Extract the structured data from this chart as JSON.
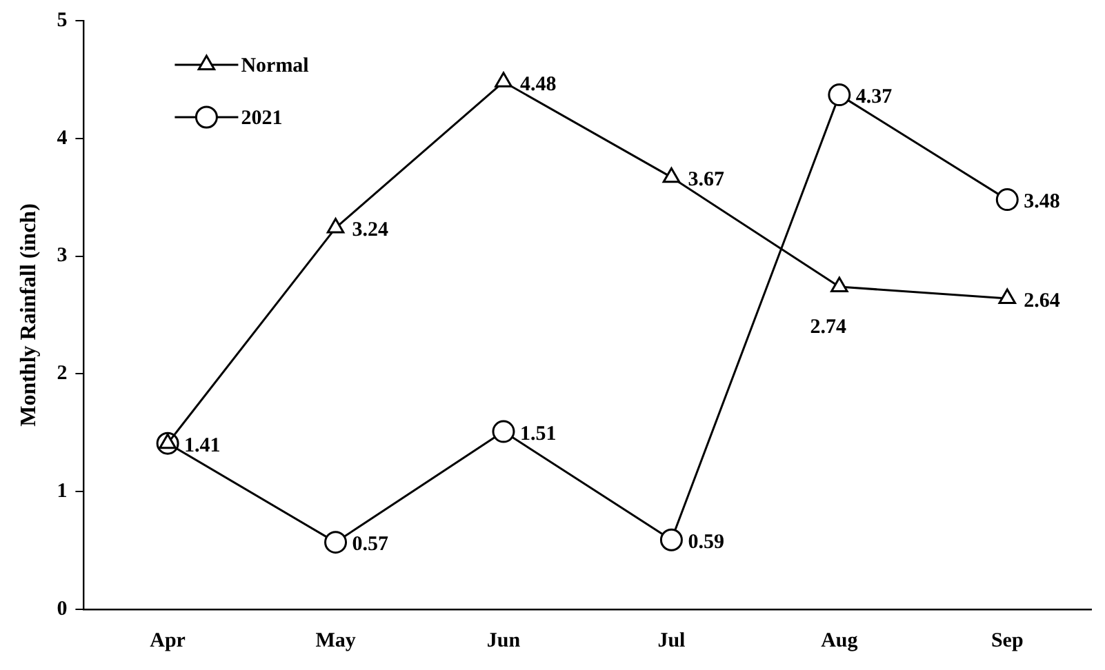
{
  "chart_data": {
    "type": "line",
    "ylabel": "Monthly Rainfall (inch)",
    "categories": [
      "Apr",
      "May",
      "Jun",
      "Jul",
      "Aug",
      "Sep"
    ],
    "series": [
      {
        "name": "Normal",
        "color": "#000000",
        "marker": "triangle",
        "values": [
          1.41,
          3.24,
          4.48,
          3.67,
          2.74,
          2.64
        ],
        "value_labels": [
          null,
          "3.24",
          "4.48",
          "3.67",
          "2.74",
          "2.64"
        ]
      },
      {
        "name": "2021",
        "color": "#000000",
        "marker": "circle",
        "values": [
          1.41,
          0.57,
          1.51,
          0.59,
          4.37,
          3.48
        ],
        "value_labels": [
          "1.41",
          "0.57",
          "1.51",
          "0.59",
          "4.37",
          "3.48"
        ]
      }
    ],
    "ylim": [
      0,
      5
    ],
    "yticks": [
      0,
      1,
      2,
      3,
      4,
      5
    ],
    "grid": false,
    "legend": "top left",
    "line_style": "solid"
  }
}
